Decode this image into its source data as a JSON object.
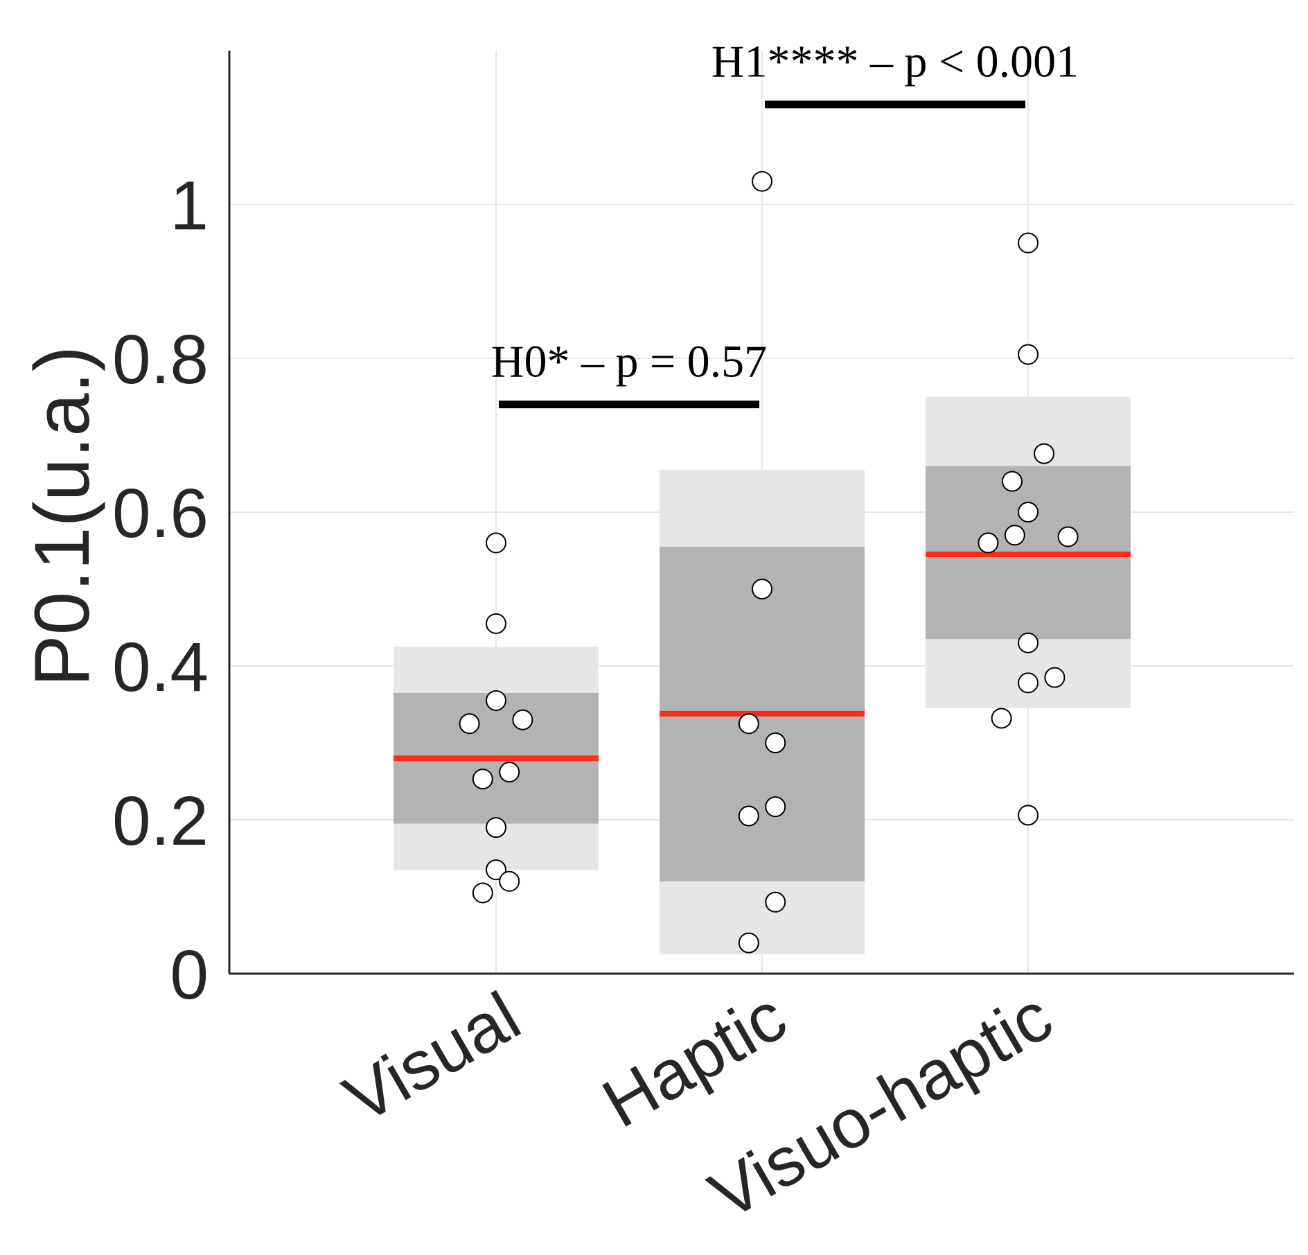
{
  "chart_data": {
    "type": "scatter",
    "subtype": "notBoxPlot",
    "title": "",
    "xlabel": "",
    "ylabel": "P0.1(u.a.)",
    "ylim": [
      0,
      1.2
    ],
    "yticks": [
      "0",
      "0.2",
      "0.4",
      "0.6",
      "0.8",
      "1"
    ],
    "ytick_values": [
      0,
      0.2,
      0.4,
      0.6,
      0.8,
      1
    ],
    "grid": true,
    "categories": [
      "Visual",
      "Haptic",
      "Visuo-haptic"
    ],
    "groups": [
      {
        "name": "Visual",
        "mean": 0.28,
        "sd_band": [
          0.195,
          0.365
        ],
        "ci_band": [
          0.135,
          0.425
        ],
        "points": [
          {
            "x": 0,
            "y": 0.56
          },
          {
            "x": 0,
            "y": 0.455
          },
          {
            "x": 0,
            "y": 0.355
          },
          {
            "x": -0.1,
            "y": 0.325
          },
          {
            "x": 0.1,
            "y": 0.33
          },
          {
            "x": -0.05,
            "y": 0.253
          },
          {
            "x": 0.05,
            "y": 0.262
          },
          {
            "x": 0,
            "y": 0.19
          },
          {
            "x": 0,
            "y": 0.135
          },
          {
            "x": -0.05,
            "y": 0.105
          },
          {
            "x": 0.05,
            "y": 0.12
          }
        ]
      },
      {
        "name": "Haptic",
        "mean": 0.338,
        "sd_band": [
          0.12,
          0.555
        ],
        "ci_band": [
          0.025,
          0.655
        ],
        "points": [
          {
            "x": 0,
            "y": 1.03
          },
          {
            "x": 0,
            "y": 0.5
          },
          {
            "x": -0.05,
            "y": 0.325
          },
          {
            "x": 0.05,
            "y": 0.3
          },
          {
            "x": -0.05,
            "y": 0.205
          },
          {
            "x": 0.05,
            "y": 0.217
          },
          {
            "x": 0.05,
            "y": 0.093
          },
          {
            "x": -0.05,
            "y": 0.04
          }
        ]
      },
      {
        "name": "Visuo-haptic",
        "mean": 0.545,
        "sd_band": [
          0.435,
          0.66
        ],
        "ci_band": [
          0.345,
          0.75
        ],
        "points": [
          {
            "x": 0,
            "y": 0.95
          },
          {
            "x": 0,
            "y": 0.805
          },
          {
            "x": 0.06,
            "y": 0.676
          },
          {
            "x": -0.06,
            "y": 0.64
          },
          {
            "x": 0,
            "y": 0.6
          },
          {
            "x": -0.05,
            "y": 0.57
          },
          {
            "x": -0.15,
            "y": 0.56
          },
          {
            "x": 0.15,
            "y": 0.568
          },
          {
            "x": 0,
            "y": 0.43
          },
          {
            "x": 0.1,
            "y": 0.385
          },
          {
            "x": 0,
            "y": 0.378
          },
          {
            "x": -0.1,
            "y": 0.332
          },
          {
            "x": 0,
            "y": 0.206
          }
        ]
      }
    ],
    "annotations": [
      {
        "text": "H0* – p = 0.57",
        "from": "Visual",
        "to": "Haptic",
        "y": 0.74
      },
      {
        "text": "H1**** – p < 0.001",
        "from": "Haptic",
        "to": "Visuo-haptic",
        "y": 1.13
      }
    ],
    "colors": {
      "mean_line": "#ff2a1a",
      "sd_band": "#b3b3b3",
      "ci_band": "#e6e6e6",
      "points_fill": "#ffffff",
      "points_edge": "#000000",
      "grid": "#e6e6e6",
      "axis": "#262626"
    }
  }
}
